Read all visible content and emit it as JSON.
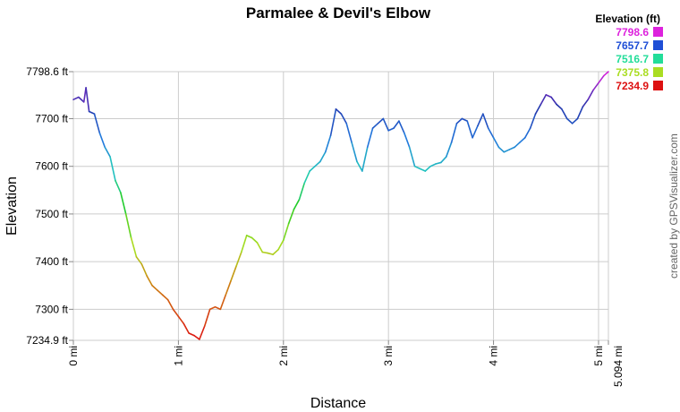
{
  "chart_data": {
    "type": "line",
    "title": "Parmalee & Devil's Elbow",
    "xlabel": "Distance",
    "ylabel": "Elevation",
    "x_unit": "mi",
    "y_unit": "ft",
    "xlim": [
      0,
      5.094
    ],
    "ylim": [
      7234.9,
      7798.6
    ],
    "x_ticks": [
      {
        "value": 0,
        "label": "0 mi"
      },
      {
        "value": 1,
        "label": "1 mi"
      },
      {
        "value": 2,
        "label": "2 mi"
      },
      {
        "value": 3,
        "label": "3 mi"
      },
      {
        "value": 4,
        "label": "4 mi"
      },
      {
        "value": 5,
        "label": "5 mi"
      },
      {
        "value": 5.094,
        "label": "5.094 mi"
      }
    ],
    "y_ticks": [
      {
        "value": 7234.9,
        "label": "7234.9 ft"
      },
      {
        "value": 7300,
        "label": "7300 ft"
      },
      {
        "value": 7400,
        "label": "7400 ft"
      },
      {
        "value": 7500,
        "label": "7500 ft"
      },
      {
        "value": 7600,
        "label": "7600 ft"
      },
      {
        "value": 7700,
        "label": "7700 ft"
      },
      {
        "value": 7798.6,
        "label": "7798.6 ft"
      }
    ],
    "grid": true,
    "legend": {
      "title": "Elevation (ft)",
      "position": "top-right",
      "items": [
        {
          "label": "7798.6",
          "color": "#dd22dd"
        },
        {
          "label": "7657.7",
          "color": "#1f4fd6"
        },
        {
          "label": "7516.7",
          "color": "#22dd99"
        },
        {
          "label": "7375.8",
          "color": "#aadd22"
        },
        {
          "label": "7234.9",
          "color": "#dd1111"
        }
      ]
    },
    "credit": "created by GPSVisualizer.com",
    "series": [
      {
        "x": [
          0,
          0.05,
          0.1,
          0.12,
          0.15,
          0.2,
          0.25,
          0.3,
          0.35,
          0.4,
          0.45,
          0.5,
          0.55,
          0.6,
          0.65,
          0.7,
          0.75,
          0.8,
          0.85,
          0.9,
          0.95,
          1.0,
          1.05,
          1.1,
          1.15,
          1.2,
          1.25,
          1.3,
          1.35,
          1.4,
          1.45,
          1.5,
          1.55,
          1.6,
          1.65,
          1.7,
          1.75,
          1.8,
          1.85,
          1.9,
          1.95,
          2.0,
          2.05,
          2.1,
          2.15,
          2.2,
          2.25,
          2.3,
          2.35,
          2.4,
          2.45,
          2.5,
          2.55,
          2.6,
          2.65,
          2.7,
          2.75,
          2.8,
          2.85,
          2.9,
          2.95,
          3.0,
          3.05,
          3.1,
          3.15,
          3.2,
          3.25,
          3.3,
          3.35,
          3.4,
          3.45,
          3.5,
          3.55,
          3.6,
          3.65,
          3.7,
          3.75,
          3.8,
          3.85,
          3.9,
          3.95,
          4.0,
          4.05,
          4.1,
          4.15,
          4.2,
          4.25,
          4.3,
          4.35,
          4.4,
          4.45,
          4.5,
          4.55,
          4.6,
          4.65,
          4.7,
          4.75,
          4.8,
          4.85,
          4.9,
          4.95,
          5.0,
          5.05,
          5.094
        ],
        "y": [
          7740,
          7745,
          7735,
          7765,
          7715,
          7710,
          7670,
          7640,
          7620,
          7570,
          7545,
          7500,
          7450,
          7410,
          7395,
          7370,
          7350,
          7340,
          7330,
          7320,
          7300,
          7285,
          7270,
          7250,
          7245,
          7237,
          7265,
          7300,
          7305,
          7300,
          7330,
          7360,
          7390,
          7420,
          7455,
          7450,
          7440,
          7420,
          7418,
          7415,
          7425,
          7445,
          7480,
          7510,
          7530,
          7565,
          7590,
          7600,
          7610,
          7630,
          7665,
          7720,
          7710,
          7690,
          7650,
          7610,
          7590,
          7640,
          7680,
          7690,
          7700,
          7675,
          7680,
          7695,
          7670,
          7640,
          7600,
          7595,
          7590,
          7600,
          7605,
          7608,
          7620,
          7650,
          7690,
          7700,
          7695,
          7660,
          7685,
          7710,
          7680,
          7660,
          7640,
          7630,
          7635,
          7640,
          7650,
          7660,
          7680,
          7710,
          7730,
          7750,
          7745,
          7730,
          7720,
          7700,
          7690,
          7700,
          7725,
          7740,
          7760,
          7775,
          7790,
          7798.6
        ]
      }
    ]
  }
}
